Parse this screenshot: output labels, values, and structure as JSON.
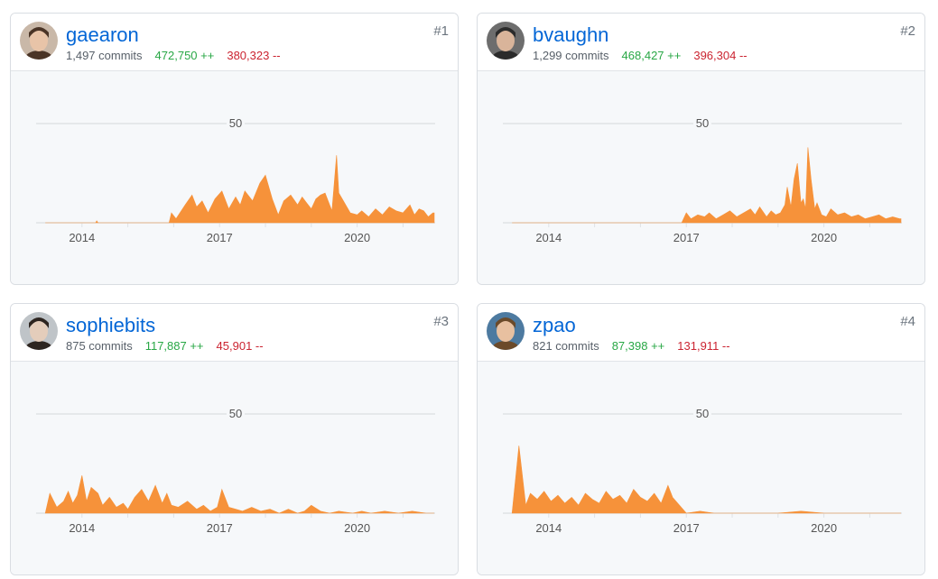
{
  "colors": {
    "area": "#f6923a",
    "username": "#0366d6",
    "additions": "#28a745",
    "deletions": "#cb2431"
  },
  "contributors": [
    {
      "rank": "#1",
      "username": "gaearon",
      "commits": "1,497 commits",
      "additions": "472,750 ++",
      "deletions": "380,323 --",
      "avatar": "avatar-icon"
    },
    {
      "rank": "#2",
      "username": "bvaughn",
      "commits": "1,299 commits",
      "additions": "468,427 ++",
      "deletions": "396,304 --",
      "avatar": "avatar-icon"
    },
    {
      "rank": "#3",
      "username": "sophiebits",
      "commits": "875 commits",
      "additions": "117,887 ++",
      "deletions": "45,901 --",
      "avatar": "avatar-icon"
    },
    {
      "rank": "#4",
      "username": "zpao",
      "commits": "821 commits",
      "additions": "87,398 ++",
      "deletions": "131,911 --",
      "avatar": "avatar-icon"
    }
  ],
  "chart_data": [
    {
      "type": "area",
      "series": [
        {
          "name": "gaearon",
          "x": [
            2013.2,
            2014.3,
            2014.32,
            2014.35,
            2015.1,
            2015.9,
            2015.95,
            2016.05,
            2016.25,
            2016.4,
            2016.5,
            2016.62,
            2016.75,
            2016.9,
            2017.05,
            2017.2,
            2017.35,
            2017.45,
            2017.55,
            2017.72,
            2017.88,
            2018.0,
            2018.15,
            2018.28,
            2018.4,
            2018.55,
            2018.7,
            2018.8,
            2018.9,
            2019.0,
            2019.1,
            2019.2,
            2019.3,
            2019.45,
            2019.55,
            2019.6,
            2019.7,
            2019.85,
            2020.0,
            2020.1,
            2020.25,
            2020.4,
            2020.55,
            2020.7,
            2020.85,
            2021.0,
            2021.15,
            2021.25,
            2021.35,
            2021.45,
            2021.55,
            2021.65,
            2021.68
          ],
          "y": [
            0,
            0,
            1,
            0,
            0,
            0,
            5,
            2,
            9,
            14,
            8,
            11,
            5,
            12,
            16,
            7,
            13,
            9,
            16,
            11,
            20,
            24,
            12,
            4,
            11,
            14,
            9,
            13,
            10,
            7,
            12,
            14,
            15,
            6,
            34,
            15,
            11,
            5,
            4,
            6,
            3,
            7,
            4,
            8,
            6,
            5,
            9,
            4,
            7,
            6,
            3,
            5,
            5
          ]
        }
      ],
      "xticks": [
        "2014",
        "2017",
        "2020"
      ],
      "yticks": [
        "50"
      ],
      "ylim": [
        0,
        70
      ],
      "xlim": [
        2013.0,
        2021.7
      ]
    },
    {
      "type": "area",
      "series": [
        {
          "name": "bvaughn",
          "x": [
            2013.2,
            2016.9,
            2017.0,
            2017.1,
            2017.25,
            2017.4,
            2017.5,
            2017.65,
            2017.8,
            2017.95,
            2018.1,
            2018.25,
            2018.4,
            2018.5,
            2018.6,
            2018.75,
            2018.85,
            2018.95,
            2019.05,
            2019.15,
            2019.2,
            2019.28,
            2019.35,
            2019.42,
            2019.5,
            2019.55,
            2019.6,
            2019.65,
            2019.72,
            2019.8,
            2019.85,
            2019.95,
            2020.05,
            2020.15,
            2020.3,
            2020.45,
            2020.6,
            2020.75,
            2020.9,
            2021.05,
            2021.2,
            2021.35,
            2021.5,
            2021.65,
            2021.68
          ],
          "y": [
            0,
            0,
            5,
            2,
            4,
            3,
            5,
            2,
            4,
            6,
            3,
            5,
            7,
            4,
            8,
            3,
            6,
            4,
            5,
            9,
            18,
            8,
            22,
            30,
            10,
            12,
            7,
            38,
            22,
            7,
            10,
            4,
            3,
            7,
            4,
            5,
            3,
            4,
            2,
            3,
            4,
            2,
            3,
            2,
            2
          ]
        }
      ],
      "xticks": [
        "2014",
        "2017",
        "2020"
      ],
      "yticks": [
        "50"
      ],
      "ylim": [
        0,
        70
      ],
      "xlim": [
        2013.0,
        2021.7
      ]
    },
    {
      "type": "area",
      "series": [
        {
          "name": "sophiebits",
          "x": [
            2013.2,
            2013.3,
            2013.45,
            2013.6,
            2013.7,
            2013.8,
            2013.9,
            2014.0,
            2014.1,
            2014.2,
            2014.35,
            2014.45,
            2014.6,
            2014.75,
            2014.9,
            2015.0,
            2015.15,
            2015.3,
            2015.45,
            2015.6,
            2015.75,
            2015.85,
            2015.95,
            2016.1,
            2016.3,
            2016.5,
            2016.65,
            2016.8,
            2016.95,
            2017.05,
            2017.2,
            2017.35,
            2017.5,
            2017.7,
            2017.9,
            2018.1,
            2018.3,
            2018.5,
            2018.7,
            2018.85,
            2019.0,
            2019.2,
            2019.4,
            2019.6,
            2019.9,
            2020.1,
            2020.3,
            2020.6,
            2020.9,
            2021.2,
            2021.5,
            2021.68
          ],
          "y": [
            0,
            10,
            3,
            6,
            11,
            5,
            9,
            19,
            6,
            13,
            10,
            4,
            8,
            3,
            5,
            2,
            8,
            12,
            6,
            14,
            5,
            10,
            4,
            3,
            6,
            2,
            4,
            1,
            3,
            12,
            3,
            2,
            1,
            3,
            1,
            2,
            0,
            2,
            0,
            1,
            4,
            1,
            0,
            1,
            0,
            1,
            0,
            1,
            0,
            1,
            0,
            0
          ]
        }
      ],
      "xticks": [
        "2014",
        "2017",
        "2020"
      ],
      "yticks": [
        "50"
      ],
      "ylim": [
        0,
        70
      ],
      "xlim": [
        2013.0,
        2021.7
      ]
    },
    {
      "type": "area",
      "series": [
        {
          "name": "zpao",
          "x": [
            2013.2,
            2013.35,
            2013.5,
            2013.6,
            2013.75,
            2013.9,
            2014.05,
            2014.2,
            2014.35,
            2014.5,
            2014.65,
            2014.8,
            2014.95,
            2015.1,
            2015.25,
            2015.4,
            2015.55,
            2015.7,
            2015.85,
            2016.0,
            2016.15,
            2016.3,
            2016.45,
            2016.6,
            2016.7,
            2016.85,
            2017.0,
            2017.3,
            2017.6,
            2018.0,
            2018.5,
            2019.0,
            2019.5,
            2020.0,
            2020.5,
            2021.0,
            2021.68
          ],
          "y": [
            0,
            34,
            4,
            10,
            7,
            11,
            6,
            9,
            5,
            8,
            4,
            10,
            7,
            5,
            11,
            7,
            9,
            5,
            12,
            8,
            6,
            10,
            5,
            14,
            8,
            4,
            0,
            1,
            0,
            0,
            0,
            0,
            1,
            0,
            0,
            0,
            0
          ]
        }
      ],
      "xticks": [
        "2014",
        "2017",
        "2020"
      ],
      "yticks": [
        "50"
      ],
      "ylim": [
        0,
        70
      ],
      "xlim": [
        2013.0,
        2021.7
      ]
    }
  ]
}
